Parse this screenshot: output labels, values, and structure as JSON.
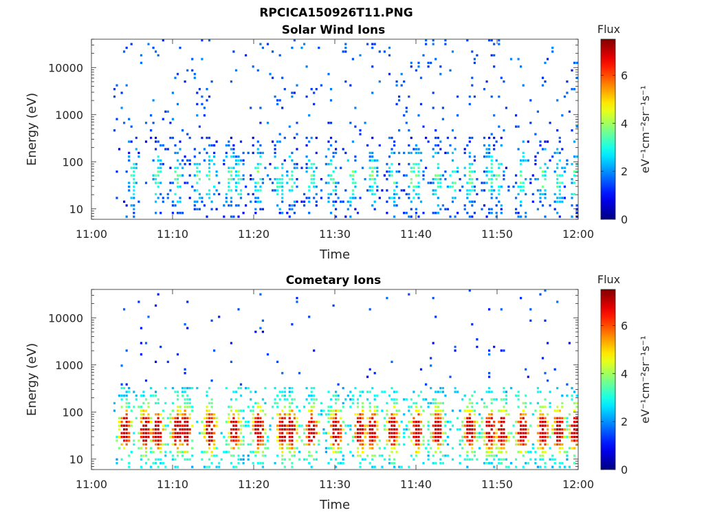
{
  "figure": {
    "title": "RPCICA150926T11.PNG"
  },
  "colors": {
    "colormap": "jet",
    "colormap_stops": [
      "#00008f",
      "#0000ff",
      "#00ffff",
      "#7fff7f",
      "#ffff00",
      "#ff0000",
      "#7f0000"
    ],
    "axis": "#262626",
    "background": "#ffffff"
  },
  "chart_data": [
    {
      "type": "heatmap",
      "title": "Solar Wind Ions",
      "xlabel": "Time",
      "ylabel": "Energy (eV)",
      "x_ticks": [
        "11:00",
        "11:10",
        "11:20",
        "11:30",
        "11:40",
        "11:50",
        "12:00"
      ],
      "xlim_minutes": [
        0,
        60
      ],
      "y_scale": "log",
      "y_ticks": [
        "10",
        "100",
        "1000",
        "10000"
      ],
      "y_tick_values": [
        10,
        100,
        1000,
        10000
      ],
      "ylim": [
        6,
        40000
      ],
      "data_start_minute": 2.7,
      "colorbar": {
        "title": "Flux",
        "label": "eV⁻¹cm⁻²sr⁻¹s⁻¹",
        "ticks": [
          "0",
          "2",
          "4",
          "6"
        ],
        "tick_values": [
          0,
          2,
          4,
          6
        ],
        "range": [
          0,
          7.5
        ]
      },
      "bursts_minute": [
        5,
        8,
        10.5,
        13,
        14.5,
        17,
        18,
        20.5,
        23,
        24.5,
        27,
        29.5,
        32,
        34.5,
        37,
        39.5,
        40,
        42.5,
        44.5,
        46.5,
        49,
        50,
        53,
        55.5,
        57.5,
        59.5
      ],
      "intensity_profile": {
        "low_energy_peak_eV": 45,
        "low_energy_typical_flux": 2.5,
        "high_energy_sparse_flux": 1.2
      }
    },
    {
      "type": "heatmap",
      "title": "Cometary Ions",
      "xlabel": "Time",
      "ylabel": "Energy (eV)",
      "x_ticks": [
        "11:00",
        "11:10",
        "11:20",
        "11:30",
        "11:40",
        "11:50",
        "12:00"
      ],
      "xlim_minutes": [
        0,
        60
      ],
      "y_scale": "log",
      "y_ticks": [
        "10",
        "100",
        "1000",
        "10000"
      ],
      "y_tick_values": [
        10,
        100,
        1000,
        10000
      ],
      "ylim": [
        6,
        40000
      ],
      "data_start_minute": 2.7,
      "colorbar": {
        "title": "Flux",
        "label": "eV⁻¹cm⁻²sr⁻¹s⁻¹",
        "ticks": [
          "0",
          "2",
          "4",
          "6"
        ],
        "tick_values": [
          0,
          2,
          4,
          6
        ],
        "range": [
          0,
          7.5
        ]
      },
      "bursts_minute": [
        4,
        6.5,
        8,
        10.5,
        11.5,
        14.5,
        17.5,
        20.5,
        23.5,
        24.5,
        27,
        30,
        33,
        34.5,
        37,
        40,
        42.5,
        46.5,
        49,
        50.5,
        53,
        55.5,
        57.5,
        59.5
      ],
      "intensity_profile": {
        "low_energy_peak_eV": 40,
        "low_energy_typical_flux": 5,
        "high_energy_sparse_flux": 1.0
      }
    }
  ]
}
